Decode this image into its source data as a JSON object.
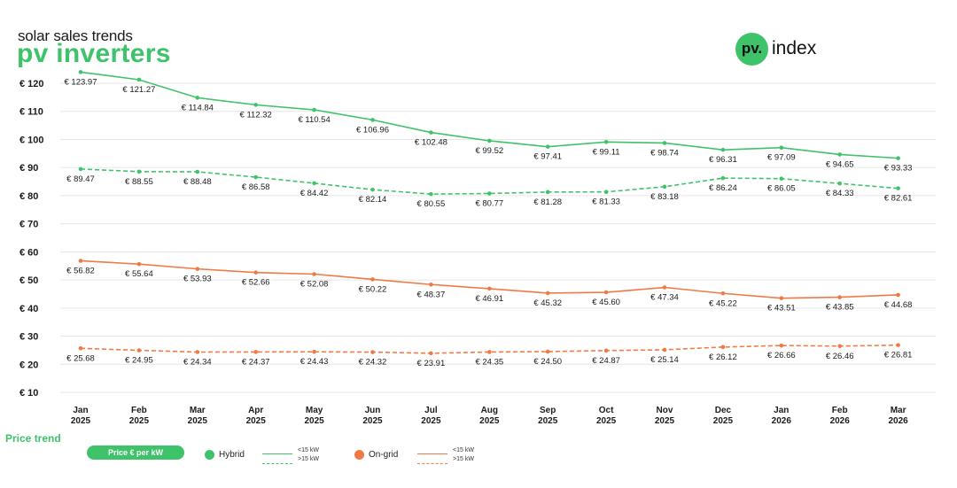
{
  "header": {
    "subtitle": "solar sales trends",
    "title": "pv inverters",
    "brand_mark": "pv.",
    "brand_word": "index"
  },
  "colors": {
    "hybrid": "#3fc36a",
    "ongrid": "#f07a45",
    "grid": "#e6e6e6",
    "text": "#1a1a1a"
  },
  "legend": {
    "title": "Price trend",
    "pill": "Price € per kW",
    "groups": [
      {
        "name": "Hybrid",
        "items": [
          "<15 kW",
          ">15 kW"
        ]
      },
      {
        "name": "On-grid",
        "items": [
          "<15 kW",
          ">15 kW"
        ]
      }
    ]
  },
  "chart_data": {
    "type": "line",
    "title": "pv inverters",
    "subtitle": "solar sales trends",
    "categories": [
      [
        "Jan",
        "2025"
      ],
      [
        "Feb",
        "2025"
      ],
      [
        "Mar",
        "2025"
      ],
      [
        "Apr",
        "2025"
      ],
      [
        "May",
        "2025"
      ],
      [
        "Jun",
        "2025"
      ],
      [
        "Jul",
        "2025"
      ],
      [
        "Aug",
        "2025"
      ],
      [
        "Sep",
        "2025"
      ],
      [
        "Oct",
        "2025"
      ],
      [
        "Nov",
        "2025"
      ],
      [
        "Dec",
        "2025"
      ],
      [
        "Jan",
        "2026"
      ],
      [
        "Feb",
        "2026"
      ],
      [
        "Mar",
        "2026"
      ]
    ],
    "y_ticks": [
      "€ 10",
      "€ 20",
      "€ 30",
      "€ 40",
      "€ 50",
      "€ 60",
      "€ 70",
      "€ 80",
      "€ 90",
      "€ 100",
      "€ 110",
      "€ 120"
    ],
    "ylim": [
      10,
      120
    ],
    "grid": true,
    "legend_position": "bottom",
    "series": [
      {
        "group": "Hybrid",
        "name": "<15 kW",
        "style": "solid",
        "values": [
          123.97,
          121.27,
          114.84,
          112.32,
          110.54,
          106.96,
          102.48,
          99.52,
          97.41,
          99.11,
          98.74,
          96.31,
          97.09,
          94.65,
          93.33
        ],
        "labels": [
          "€ 123.97",
          "€ 121.27",
          "€ 114.84",
          "€ 112.32",
          "€ 110.54",
          "€ 106.96",
          "€ 102.48",
          "€ 99.52",
          "€ 97.41",
          "€ 99.11",
          "€ 98.74",
          "€ 96.31",
          "€ 97.09",
          "€ 94.65",
          "€ 93.33"
        ]
      },
      {
        "group": "Hybrid",
        "name": ">15 kW",
        "style": "dashed",
        "values": [
          89.47,
          88.55,
          88.48,
          86.58,
          84.42,
          82.14,
          80.55,
          80.77,
          81.28,
          81.33,
          83.18,
          86.24,
          86.05,
          84.33,
          82.61
        ],
        "labels": [
          "€ 89.47",
          "€ 88.55",
          "€ 88.48",
          "€ 86.58",
          "€ 84.42",
          "€ 82.14",
          "€ 80.55",
          "€ 80.77",
          "€ 81.28",
          "€ 81.33",
          "€ 83.18",
          "€ 86.24",
          "€ 86.05",
          "€ 84.33",
          "€ 82.61"
        ]
      },
      {
        "group": "On-grid",
        "name": "<15 kW",
        "style": "solid",
        "values": [
          56.82,
          55.64,
          53.93,
          52.66,
          52.08,
          50.22,
          48.37,
          46.91,
          45.32,
          45.6,
          47.34,
          45.22,
          43.51,
          43.85,
          44.68
        ],
        "labels": [
          "€ 56.82",
          "€ 55.64",
          "€ 53.93",
          "€ 52.66",
          "€ 52.08",
          "€ 50.22",
          "€ 48.37",
          "€ 46.91",
          "€ 45.32",
          "€ 45.60",
          "€ 47.34",
          "€ 45.22",
          "€ 43.51",
          "€ 43.85",
          "€ 44.68"
        ]
      },
      {
        "group": "On-grid",
        "name": ">15 kW",
        "style": "dashed",
        "values": [
          25.68,
          24.95,
          24.34,
          24.37,
          24.43,
          24.32,
          23.91,
          24.35,
          24.5,
          24.87,
          25.14,
          26.12,
          26.66,
          26.46,
          26.81
        ],
        "labels": [
          "€ 25.68",
          "€ 24.95",
          "€ 24.34",
          "€ 24.37",
          "€ 24.43",
          "€ 24.32",
          "€ 23.91",
          "€ 24.35",
          "€ 24.50",
          "€ 24.87",
          "€ 25.14",
          "€ 26.12",
          "€ 26.66",
          "€ 26.46",
          "€ 26.81"
        ]
      }
    ]
  }
}
